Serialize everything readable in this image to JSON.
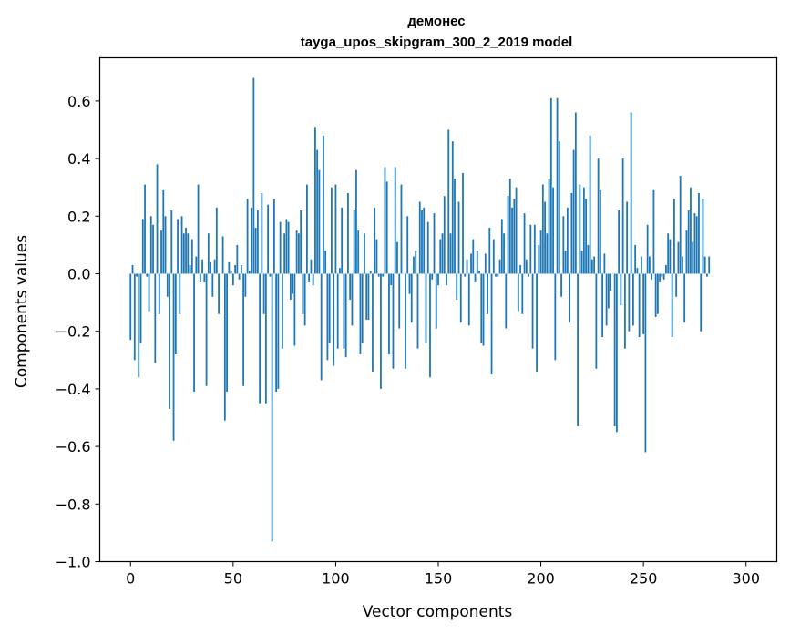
{
  "chart_data": {
    "type": "bar",
    "title": "демонес",
    "subtitle": "tayga_upos_skipgram_300_2_2019 model",
    "xlabel": "Vector components",
    "ylabel": "Components values",
    "xlim": [
      -15,
      315
    ],
    "ylim": [
      -1.0,
      0.75
    ],
    "xticks": [
      0,
      50,
      100,
      150,
      200,
      250,
      300
    ],
    "xtick_labels": [
      "0",
      "50",
      "100",
      "150",
      "200",
      "250",
      "300"
    ],
    "yticks": [
      -1.0,
      -0.8,
      -0.6,
      -0.4,
      -0.2,
      0.0,
      0.2,
      0.4,
      0.6
    ],
    "ytick_labels": [
      "−1.0",
      "−0.8",
      "−0.6",
      "−0.4",
      "−0.2",
      "0.0",
      "0.2",
      "0.4",
      "0.6"
    ],
    "grid": false,
    "bar_color": "#1f77b4",
    "x_start": 0,
    "values": [
      -0.23,
      0.03,
      -0.3,
      -0.01,
      -0.36,
      -0.24,
      0.19,
      0.31,
      -0.01,
      -0.13,
      0.2,
      0.17,
      -0.31,
      0.38,
      -0.14,
      0.15,
      0.29,
      0.2,
      -0.08,
      -0.47,
      0.22,
      -0.58,
      -0.28,
      0.19,
      -0.14,
      0.2,
      0.14,
      0.16,
      0.14,
      0.03,
      0.12,
      -0.41,
      0.06,
      0.31,
      -0.03,
      0.05,
      -0.03,
      -0.39,
      0.14,
      0.04,
      -0.08,
      0.05,
      0.23,
      -0.14,
      0.0,
      0.13,
      -0.51,
      -0.41,
      0.04,
      0.01,
      -0.04,
      0.03,
      0.1,
      -0.02,
      0.03,
      -0.39,
      -0.08,
      0.26,
      0.01,
      0.23,
      0.68,
      0.16,
      0.22,
      -0.45,
      0.28,
      -0.14,
      -0.45,
      0.24,
      -0.01,
      -0.93,
      0.26,
      -0.41,
      -0.4,
      0.18,
      -0.26,
      0.14,
      0.19,
      0.18,
      -0.09,
      -0.07,
      -0.25,
      0.15,
      0.14,
      0.22,
      -0.14,
      -0.18,
      0.31,
      -0.03,
      0.05,
      -0.04,
      0.51,
      0.43,
      0.36,
      -0.37,
      0.48,
      0.08,
      -0.3,
      -0.24,
      0.3,
      -0.32,
      0.31,
      -0.26,
      0.02,
      0.23,
      -0.26,
      -0.29,
      0.28,
      -0.09,
      -0.18,
      0.22,
      0.36,
      0.15,
      -0.28,
      -0.24,
      0.14,
      -0.16,
      -0.16,
      0.01,
      -0.34,
      0.23,
      0.12,
      -0.01,
      -0.4,
      -0.01,
      0.37,
      0.32,
      -0.28,
      -0.04,
      -0.33,
      0.37,
      0.11,
      -0.19,
      0.31,
      0.0,
      -0.33,
      0.2,
      -0.07,
      -0.17,
      0.06,
      0.08,
      -0.26,
      0.25,
      0.22,
      0.23,
      -0.24,
      0.18,
      -0.36,
      -0.02,
      0.21,
      -0.19,
      -0.04,
      0.12,
      0.14,
      0.27,
      -0.04,
      0.5,
      0.14,
      0.46,
      0.33,
      -0.09,
      0.25,
      -0.17,
      0.35,
      -0.01,
      0.05,
      -0.18,
      0.07,
      0.12,
      -0.03,
      0.08,
      0.01,
      -0.24,
      -0.25,
      0.07,
      -0.14,
      0.16,
      -0.35,
      0.12,
      -0.01,
      -0.01,
      0.05,
      0.19,
      0.14,
      -0.19,
      0.27,
      0.33,
      0.23,
      0.26,
      0.3,
      -0.13,
      0.03,
      -0.14,
      0.21,
      0.05,
      -0.01,
      0.17,
      -0.26,
      0.17,
      -0.34,
      0.1,
      0.15,
      0.31,
      0.25,
      0.14,
      0.33,
      0.61,
      0.3,
      -0.3,
      0.61,
      0.46,
      -0.08,
      0.2,
      0.08,
      0.23,
      -0.17,
      0.28,
      0.43,
      0.56,
      -0.53,
      0.31,
      0.08,
      0.3,
      0.26,
      0.1,
      0.48,
      0.05,
      0.06,
      -0.33,
      0.4,
      0.29,
      -0.22,
      0.07,
      -0.18,
      -0.12,
      -0.06,
      0.0,
      -0.53,
      -0.55,
      0.22,
      -0.11,
      0.4,
      -0.26,
      0.25,
      -0.2,
      0.56,
      -0.18,
      0.1,
      0.02,
      -0.22,
      0.06,
      -0.21,
      -0.62,
      0.17,
      0.06,
      -0.02,
      0.29,
      -0.15,
      -0.14,
      -0.03,
      -0.01,
      -0.02,
      0.03,
      0.14,
      0.12,
      -0.22,
      0.26,
      -0.08,
      0.11,
      0.34,
      0.06,
      -0.17,
      0.15,
      0.22,
      0.3,
      0.11,
      0.21,
      0.2,
      0.28,
      -0.2,
      0.26,
      0.06,
      -0.01,
      0.06
    ]
  }
}
